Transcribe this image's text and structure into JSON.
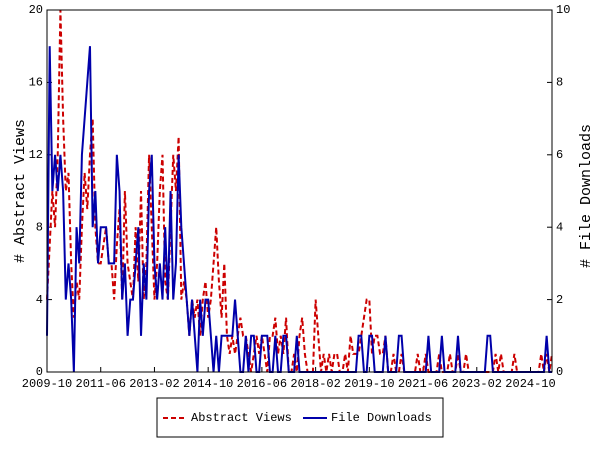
{
  "chart_data": {
    "type": "line",
    "x": [
      "2009-10",
      "2009-11",
      "2009-12",
      "2010-01",
      "2010-02",
      "2010-03",
      "2010-04",
      "2010-05",
      "2010-06",
      "2010-07",
      "2010-08",
      "2010-09",
      "2010-10",
      "2010-11",
      "2010-12",
      "2011-01",
      "2011-02",
      "2011-03",
      "2011-04",
      "2011-05",
      "2011-06",
      "2011-07",
      "2011-08",
      "2011-09",
      "2011-10",
      "2011-11",
      "2011-12",
      "2012-01",
      "2012-02",
      "2012-03",
      "2012-04",
      "2012-05",
      "2012-06",
      "2012-07",
      "2012-08",
      "2012-09",
      "2012-10",
      "2012-11",
      "2012-12",
      "2013-01",
      "2013-02",
      "2013-03",
      "2013-04",
      "2013-05",
      "2013-06",
      "2013-07",
      "2013-08",
      "2013-09",
      "2013-10",
      "2013-11",
      "2013-12",
      "2014-01",
      "2014-02",
      "2014-03",
      "2014-04",
      "2014-05",
      "2014-06",
      "2014-07",
      "2014-08",
      "2014-09",
      "2014-10",
      "2014-11",
      "2014-12",
      "2015-01",
      "2015-02",
      "2015-03",
      "2015-04",
      "2015-05",
      "2015-06",
      "2015-07",
      "2015-08",
      "2015-09",
      "2015-10",
      "2015-11",
      "2015-12",
      "2016-01",
      "2016-02",
      "2016-03",
      "2016-04",
      "2016-05",
      "2016-06",
      "2016-07",
      "2016-08",
      "2016-09",
      "2016-10",
      "2016-11",
      "2016-12",
      "2017-01",
      "2017-02",
      "2017-03",
      "2017-04",
      "2017-05",
      "2017-06",
      "2017-07",
      "2017-08",
      "2017-09",
      "2017-10",
      "2017-11",
      "2017-12",
      "2018-01",
      "2018-02",
      "2018-03",
      "2018-04",
      "2018-05",
      "2018-06",
      "2018-07",
      "2018-08",
      "2018-09",
      "2018-10",
      "2018-11",
      "2018-12",
      "2019-01",
      "2019-02",
      "2019-03",
      "2019-04",
      "2019-05",
      "2019-06",
      "2019-07",
      "2019-08",
      "2019-09",
      "2019-10",
      "2019-11",
      "2019-12",
      "2020-01",
      "2020-02",
      "2020-03",
      "2020-04",
      "2020-05",
      "2020-06",
      "2020-07",
      "2020-08",
      "2020-09",
      "2020-10",
      "2020-11",
      "2020-12",
      "2021-01",
      "2021-02",
      "2021-03",
      "2021-04",
      "2021-05",
      "2021-06",
      "2021-07",
      "2021-08",
      "2021-09",
      "2021-10",
      "2021-11",
      "2021-12",
      "2022-01",
      "2022-02",
      "2022-03",
      "2022-04",
      "2022-05",
      "2022-06",
      "2022-07",
      "2022-08",
      "2022-09",
      "2022-10",
      "2022-11",
      "2022-12",
      "2023-01",
      "2023-02",
      "2023-03",
      "2023-04",
      "2023-05",
      "2023-06",
      "2023-07",
      "2023-08",
      "2023-09",
      "2023-10",
      "2023-11",
      "2023-12",
      "2024-01",
      "2024-02",
      "2024-03",
      "2024-04",
      "2024-05",
      "2024-06",
      "2024-07",
      "2024-08",
      "2024-09",
      "2024-10",
      "2024-11",
      "2024-12",
      "2025-01",
      "2025-02",
      "2025-03",
      "2025-04",
      "2025-05",
      "2025-06"
    ],
    "xticks": [
      "2009-10",
      "2011-06",
      "2013-02",
      "2014-10",
      "2016-06",
      "2018-02",
      "2019-10",
      "2021-06",
      "2023-02",
      "2024-10"
    ],
    "y_label": "# Abstract Views",
    "y2_label": "# File Downloads",
    "ylim": [
      0,
      20
    ],
    "yticks": [
      0,
      4,
      8,
      12,
      16,
      20
    ],
    "y2lim": [
      0,
      10
    ],
    "y2ticks": [
      0,
      2,
      4,
      6,
      8,
      10
    ],
    "legend": "bottom",
    "series": [
      {
        "name": "Abstract Views",
        "color": "#cc0000",
        "dash": true,
        "axis": "y",
        "values": [
          4,
          7,
          10,
          8,
          12,
          20,
          14,
          10,
          11,
          6,
          3,
          5,
          4,
          8,
          11,
          9,
          12,
          14,
          8,
          6,
          6,
          7,
          8,
          6,
          6,
          4,
          7,
          9,
          4,
          10,
          6,
          5,
          4,
          8,
          5,
          10,
          4,
          6,
          12,
          8,
          4,
          6,
          10,
          12,
          5,
          4,
          8,
          12,
          10,
          13,
          4,
          5,
          4,
          2,
          4,
          3,
          4,
          2,
          4,
          5,
          3,
          4,
          6,
          8,
          5,
          3,
          6,
          2,
          1,
          2,
          1,
          2,
          3,
          2,
          2,
          1,
          0,
          1,
          2,
          1,
          2,
          1,
          0,
          2,
          2,
          3,
          1,
          2,
          1,
          3,
          0,
          0,
          1,
          0,
          2,
          3,
          1,
          0,
          0,
          0,
          4,
          2,
          0,
          1,
          0,
          1,
          0,
          1,
          1,
          0,
          0,
          1,
          0,
          2,
          1,
          1,
          1,
          2,
          3,
          4,
          4,
          1,
          2,
          2,
          1,
          1,
          2,
          0,
          0,
          1,
          0,
          0,
          1,
          0,
          0,
          0,
          0,
          0,
          1,
          0,
          0,
          1,
          0,
          0,
          0,
          0,
          1,
          0,
          0,
          0,
          1,
          0,
          0,
          1,
          0,
          0,
          1,
          0,
          0,
          0,
          0,
          0,
          0,
          0,
          0,
          0,
          0,
          1,
          0,
          1,
          0,
          0,
          0,
          0,
          1,
          0,
          0,
          0,
          0,
          0,
          0,
          0,
          0,
          0,
          1,
          0,
          1,
          0,
          1
        ]
      },
      {
        "name": "File Downloads",
        "color": "#0000aa",
        "dash": false,
        "axis": "y2",
        "values": [
          1,
          9,
          5,
          6,
          5,
          6,
          5,
          2,
          3,
          2,
          0,
          4,
          3,
          6,
          7,
          8,
          9,
          4,
          5,
          3,
          4,
          4,
          4,
          3,
          3,
          3,
          6,
          5,
          2,
          3,
          1,
          2,
          2,
          3,
          4,
          1,
          3,
          2,
          5,
          6,
          3,
          2,
          3,
          2,
          4,
          2,
          5,
          2,
          3,
          6,
          4,
          3,
          2,
          1,
          2,
          1,
          0,
          2,
          1,
          2,
          2,
          1,
          0,
          1,
          0,
          1,
          1,
          1,
          1,
          1,
          2,
          1,
          0,
          0,
          1,
          0,
          1,
          1,
          0,
          0,
          1,
          1,
          1,
          0,
          0,
          1,
          0,
          0,
          1,
          1,
          0,
          0,
          0,
          1,
          0,
          0,
          0,
          0,
          0,
          0,
          0,
          0,
          0,
          0,
          0,
          0,
          0,
          0,
          0,
          0,
          0,
          0,
          0,
          0,
          0,
          0,
          1,
          1,
          0,
          0,
          1,
          1,
          0,
          0,
          0,
          0,
          1,
          0,
          0,
          0,
          0,
          1,
          1,
          0,
          0,
          0,
          0,
          0,
          0,
          0,
          0,
          0,
          1,
          0,
          0,
          0,
          0,
          1,
          0,
          0,
          0,
          0,
          0,
          1,
          0,
          0,
          0,
          0,
          0,
          0,
          0,
          0,
          0,
          0,
          1,
          1,
          0,
          0,
          0,
          0,
          0,
          0,
          0,
          0,
          0,
          0,
          0,
          0,
          0,
          0,
          0,
          0,
          0,
          0,
          0,
          0,
          1,
          0,
          0
        ]
      }
    ]
  }
}
